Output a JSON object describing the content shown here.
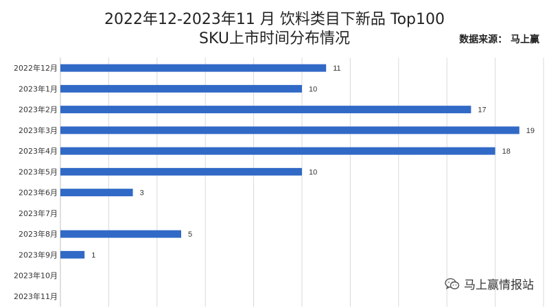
{
  "header": {
    "title_line1": "2022年12-2023年11 月 饮料类目下新品 Top100",
    "title_line2": "SKU上市时间分布情况",
    "source": "数据来源： 马上赢"
  },
  "watermark": {
    "text": "马上赢情报站",
    "icon": "wechat-icon"
  },
  "chart_data": {
    "type": "bar",
    "orientation": "horizontal",
    "title": "2022年12-2023年11 月 饮料类目下新品 Top100 SKU上市时间分布情况",
    "categories": [
      "2022年12月",
      "2023年1月",
      "2023年2月",
      "2023年3月",
      "2023年4月",
      "2023年5月",
      "2023年6月",
      "2023年7月",
      "2023年8月",
      "2023年9月",
      "2023年10月",
      "2023年11月"
    ],
    "values": [
      11,
      10,
      17,
      19,
      18,
      10,
      3,
      null,
      5,
      1,
      null,
      null
    ],
    "xlim": [
      0,
      20
    ],
    "grid": true,
    "bar_color": "#3169c6",
    "grid_color": "#d9d9d9",
    "data_labels": true
  }
}
